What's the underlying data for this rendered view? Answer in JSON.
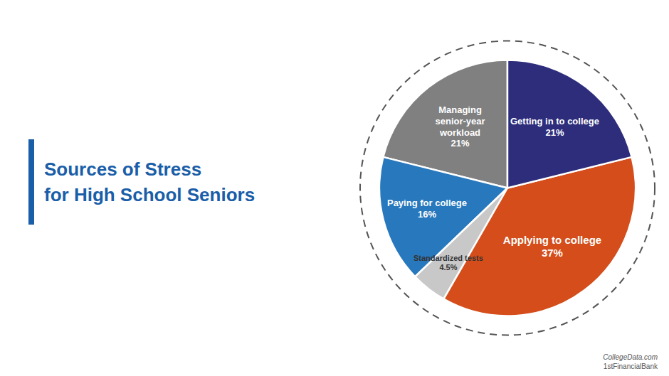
{
  "chart_data": {
    "type": "pie",
    "title": "Sources of Stress",
    "subtitle": "for High School Seniors",
    "categories": [
      "Managing\nsenior-year\nworkload",
      "Paying for college",
      "Standardized tests",
      "Applying to college",
      "Getting in to college"
    ],
    "values": [
      21.0,
      16.0,
      4.5,
      37.0,
      21.0
    ],
    "value_labels": [
      "21%",
      "16%",
      "4.5%",
      "37%",
      "21%"
    ],
    "colors": [
      "#808080",
      "#2878be",
      "#c8c8c8",
      "#d44d1a",
      "#2d2d7c"
    ],
    "data_labels": true,
    "annotations": [
      "CollegeData.com",
      "1stFinancialBank"
    ]
  }
}
